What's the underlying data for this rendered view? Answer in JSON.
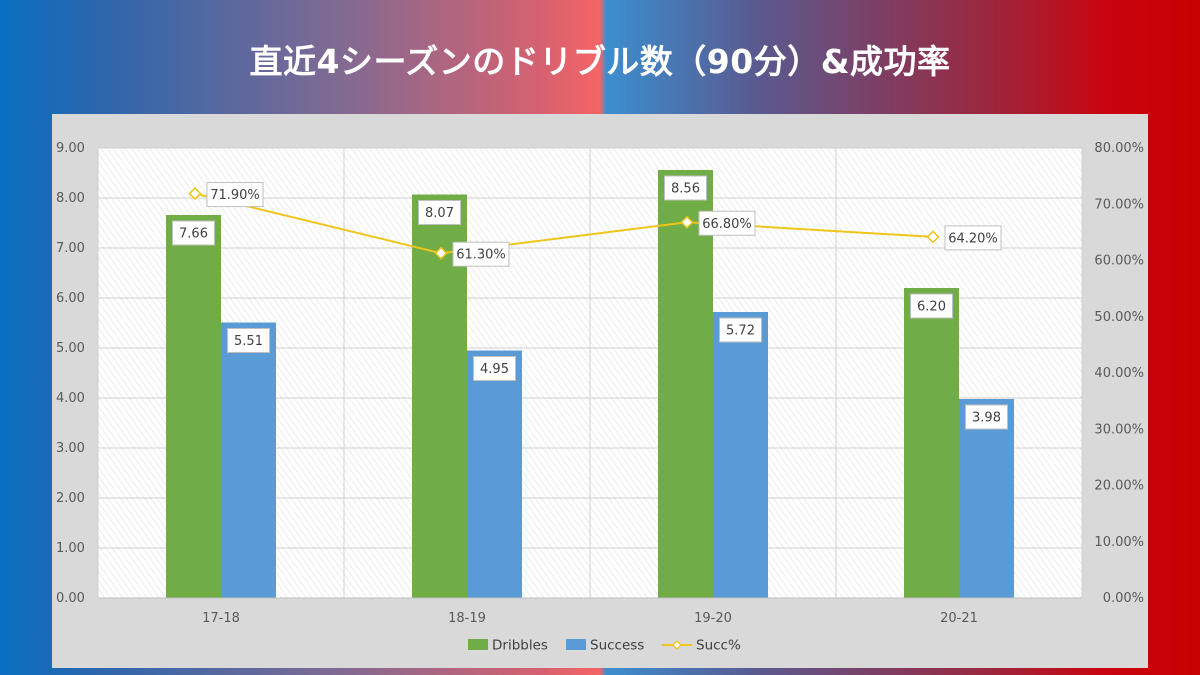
{
  "title": "直近4シーズンのドリブル数（90分）&成功率",
  "chart_data": {
    "type": "bar",
    "categories": [
      "17-18",
      "18-19",
      "19-20",
      "20-21"
    ],
    "series": [
      {
        "name": "Dribbles",
        "kind": "bar",
        "axis": "left",
        "color": "#70ad47",
        "values": [
          7.66,
          8.07,
          8.56,
          6.2
        ],
        "labels": [
          "7.66",
          "8.07",
          "8.56",
          "6.20"
        ]
      },
      {
        "name": "Success",
        "kind": "bar",
        "axis": "left",
        "color": "#5b9bd5",
        "values": [
          5.51,
          4.95,
          5.72,
          3.98
        ],
        "labels": [
          "5.51",
          "4.95",
          "5.72",
          "3.98"
        ]
      },
      {
        "name": "Succ%",
        "kind": "line",
        "axis": "right",
        "color": "#f0c419",
        "values": [
          71.9,
          61.3,
          66.8,
          64.2
        ],
        "labels": [
          "71.90%",
          "61.30%",
          "66.80%",
          "64.20%"
        ]
      }
    ],
    "ylim": [
      0,
      9
    ],
    "y_ticks": [
      "0.00",
      "1.00",
      "2.00",
      "3.00",
      "4.00",
      "5.00",
      "6.00",
      "7.00",
      "8.00",
      "9.00"
    ],
    "y2lim": [
      0,
      80
    ],
    "y2_ticks": [
      "0.00%",
      "10.00%",
      "20.00%",
      "30.00%",
      "40.00%",
      "50.00%",
      "60.00%",
      "70.00%",
      "80.00%"
    ],
    "grid": true,
    "legend": "bottom"
  }
}
